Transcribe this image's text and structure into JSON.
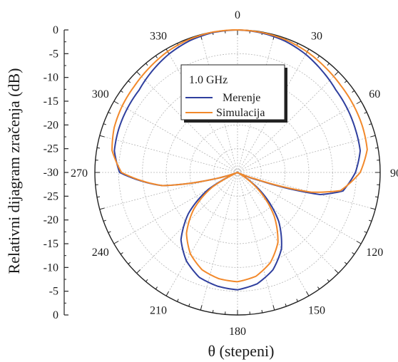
{
  "chart_data": {
    "type": "polar-line",
    "ylabel": "Relativni dijagram zračenja (dB)",
    "xlabel": "θ (stepeni)",
    "radial_range": [
      -30,
      0
    ],
    "radial_grid_step": 5,
    "angle_grid_step": 15,
    "angle_ticks": [
      0,
      30,
      60,
      90,
      120,
      150,
      180,
      210,
      240,
      270,
      300,
      330
    ],
    "y_ticks": [
      "0",
      "-5",
      "-10",
      "-15",
      "-20",
      "-25",
      "-30",
      "-25",
      "-20",
      "-15",
      "-10",
      "-5",
      "0"
    ],
    "grid": true,
    "legend": {
      "title": "1.0 GHz",
      "placement": "inside-top-center",
      "entries": [
        "Merenje",
        "Simulacija"
      ]
    },
    "series": [
      {
        "name": "Merenje",
        "color": "#2f3f9e",
        "theta": [
          0,
          10,
          20,
          30,
          40,
          50,
          60,
          70,
          80,
          90,
          100,
          105,
          110,
          115,
          120,
          130,
          140,
          150,
          160,
          170,
          180,
          190,
          200,
          210,
          220,
          230,
          240,
          245,
          250,
          255,
          260,
          270,
          280,
          290,
          300,
          310,
          320,
          330,
          340,
          350
        ],
        "r_db": [
          0,
          -0.2,
          -0.6,
          -1.3,
          -2.2,
          -3.0,
          -3.3,
          -3.6,
          -3.8,
          -5.2,
          -7.5,
          -12,
          -25,
          -29.5,
          -30,
          -23,
          -16.5,
          -11.5,
          -8.2,
          -6.2,
          -5.3,
          -5.7,
          -6.5,
          -8.5,
          -11.5,
          -16.5,
          -23,
          -29,
          -30,
          -24,
          -14,
          -5.2,
          -3.7,
          -3.4,
          -3.2,
          -3.0,
          -2.1,
          -1.2,
          -0.5,
          -0.1
        ]
      },
      {
        "name": "Simulacija",
        "color": "#f2892b",
        "theta": [
          0,
          10,
          20,
          30,
          40,
          50,
          60,
          70,
          80,
          90,
          100,
          105,
          110,
          115,
          120,
          130,
          140,
          150,
          160,
          170,
          180,
          190,
          200,
          210,
          220,
          230,
          240,
          245,
          250,
          255,
          260,
          270,
          280,
          290,
          300,
          310,
          320,
          330,
          340,
          350
        ],
        "r_db": [
          0,
          -0.1,
          -0.3,
          -0.7,
          -1.2,
          -1.6,
          -1.8,
          -2.0,
          -2.3,
          -4.2,
          -8.0,
          -14,
          -26,
          -30,
          -30,
          -24,
          -18,
          -13,
          -9.8,
          -7.8,
          -7.0,
          -7.3,
          -8.2,
          -10.2,
          -13.3,
          -18,
          -24,
          -29.5,
          -30,
          -24,
          -14,
          -5.6,
          -3.2,
          -2.4,
          -2.0,
          -1.7,
          -1.2,
          -0.6,
          -0.2,
          0
        ]
      }
    ]
  }
}
